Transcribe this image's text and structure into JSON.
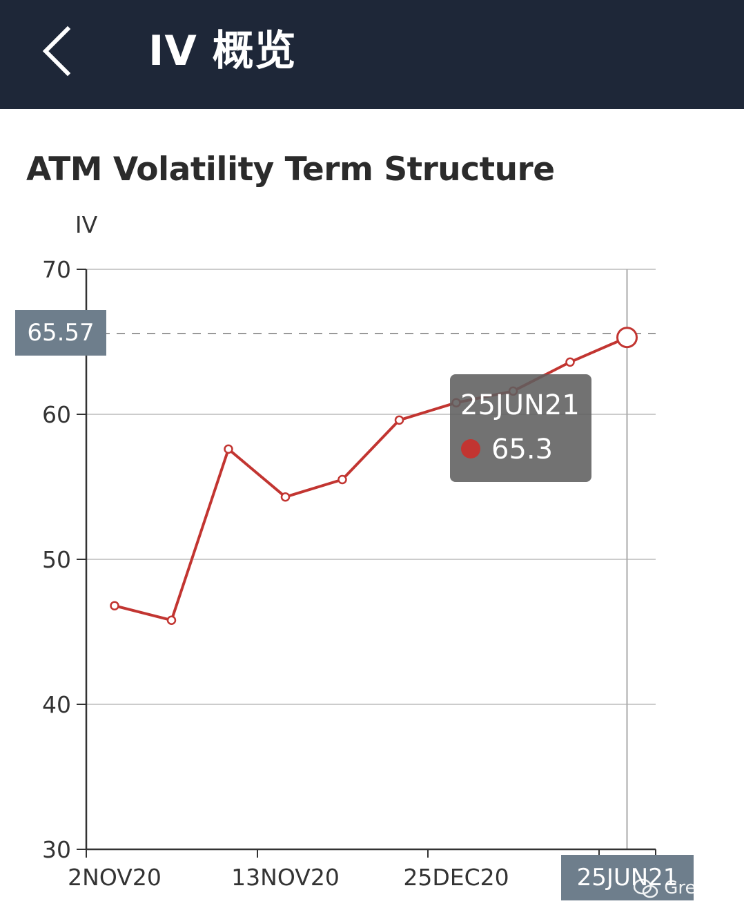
{
  "header": {
    "title": "IV 概览",
    "back_icon": "chevron-left-icon"
  },
  "chart_title": "ATM Volatility Term Structure",
  "tooltip": {
    "date": "25JUN21",
    "value": "65.3",
    "color": "#c23531"
  },
  "axis_pointer": {
    "y_label": "65.57",
    "x_label": "25JUN21"
  },
  "watermark": {
    "text": "Greeks",
    "icon": "wechat-icon"
  },
  "colors": {
    "header_bg": "#1e2738",
    "line": "#c23531",
    "pointer_bg": "#6e7e8c"
  },
  "chart_data": {
    "type": "line",
    "ylabel": "IV",
    "ylim": [
      30,
      70
    ],
    "yticks": [
      30,
      40,
      50,
      60,
      70
    ],
    "x_tick_labels": [
      "2NOV20",
      "13NOV20",
      "25DEC20",
      "25JUN21"
    ],
    "grid": true,
    "series": [
      {
        "values": [
          46.8,
          45.8,
          57.6,
          54.3,
          55.5,
          59.6,
          60.8,
          61.6,
          63.6,
          65.3
        ]
      }
    ],
    "highlighted_index": 9,
    "crosshair_y": 65.57
  }
}
